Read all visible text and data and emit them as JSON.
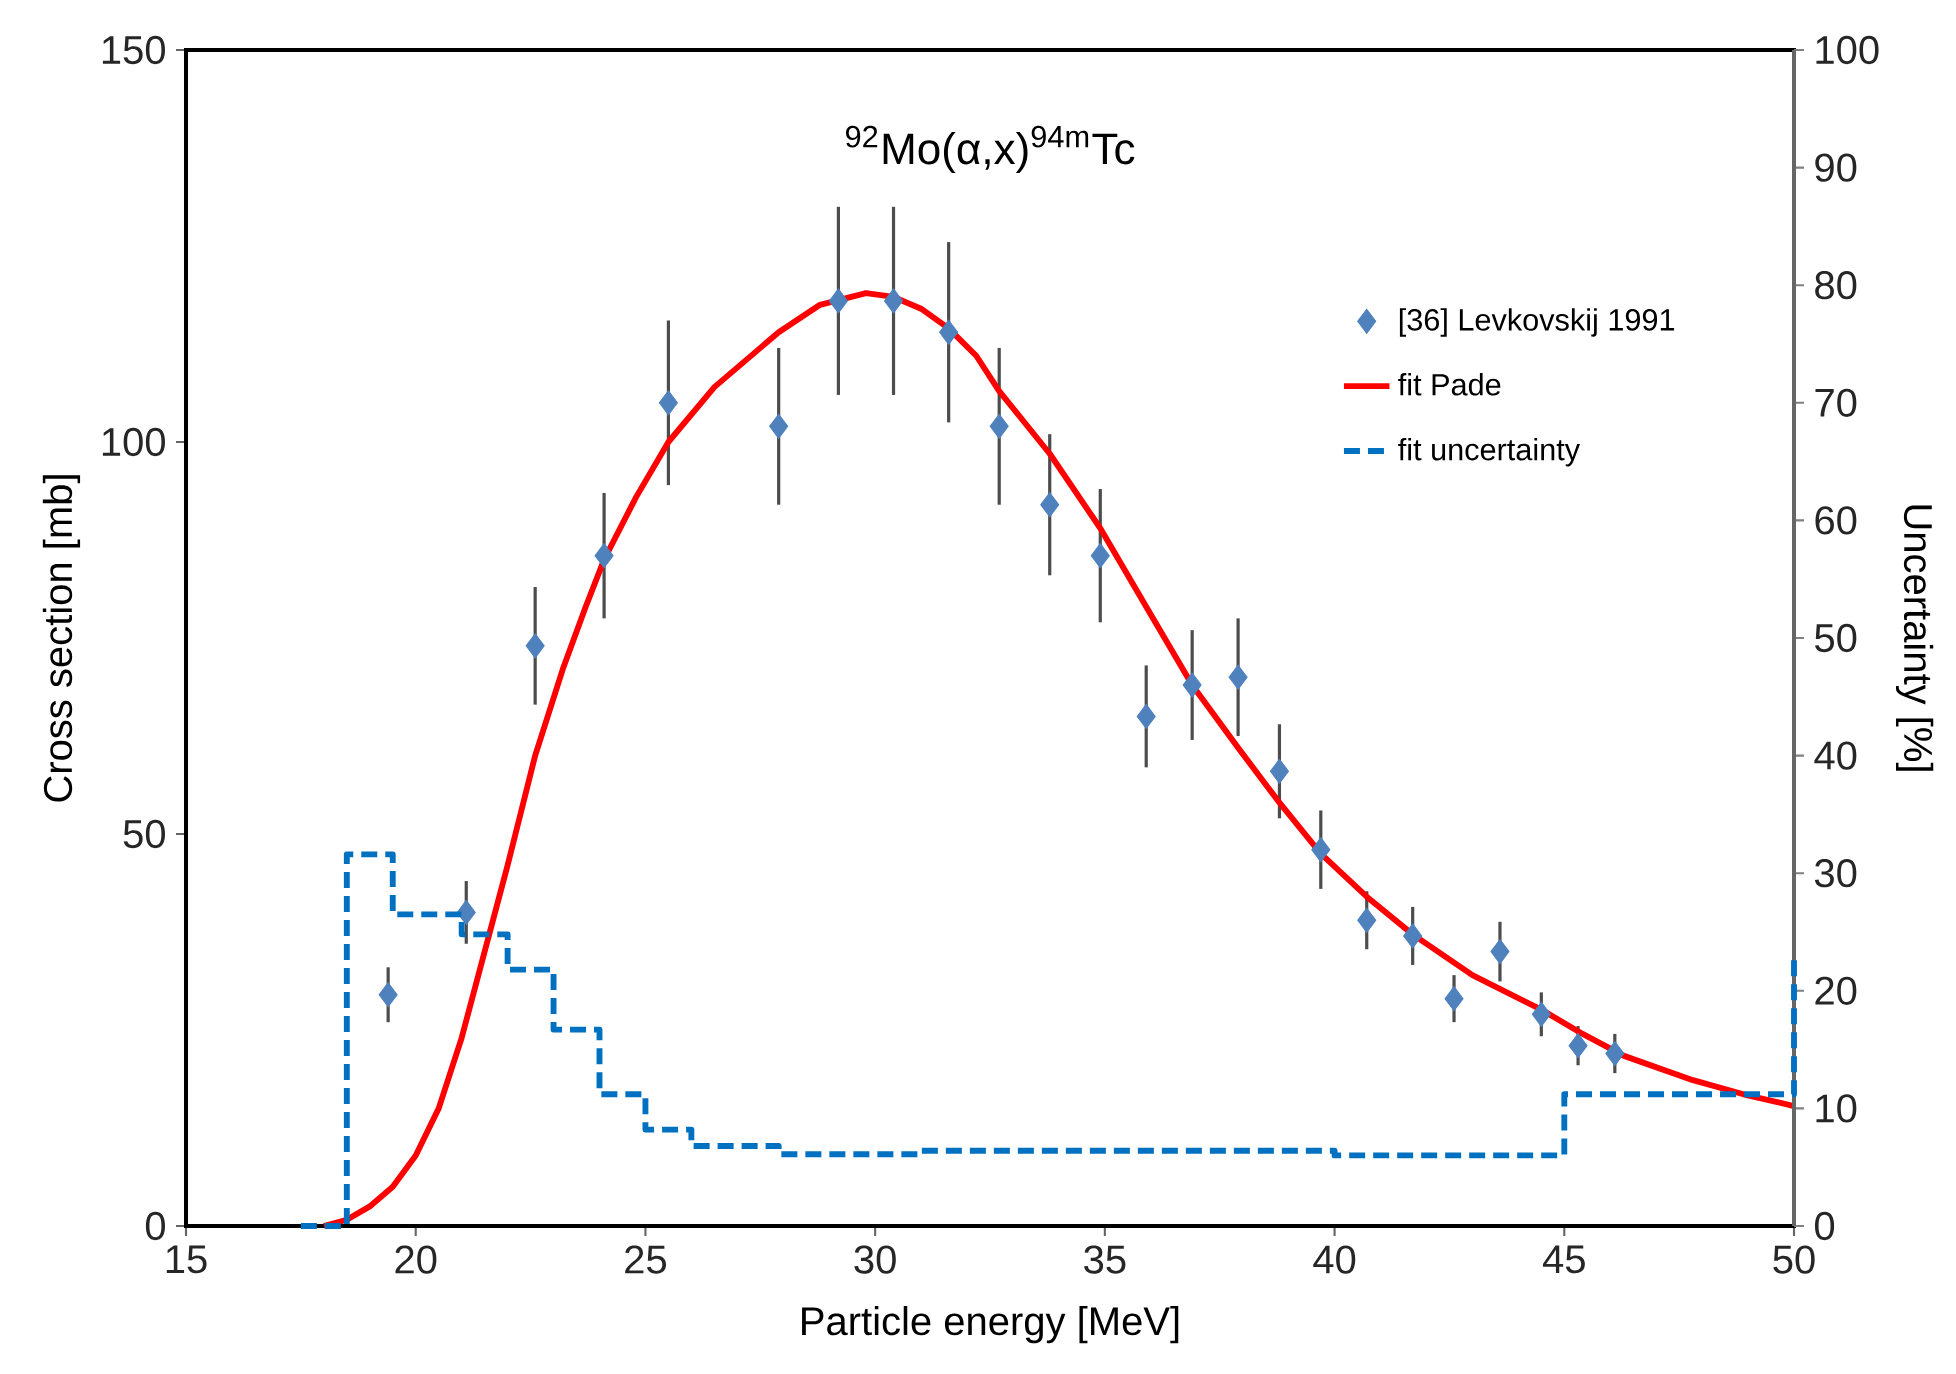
{
  "chart_data": {
    "type": "scatter",
    "title": "$^{92}$Mo(α,x)$^{94m}$Tc",
    "xlabel": "Particle energy [MeV]",
    "ylabel": "Cross section [mb]",
    "y2label": "Uncertainty [%]",
    "xlim": [
      15,
      50
    ],
    "xticks": [
      15,
      20,
      25,
      30,
      35,
      40,
      45,
      50
    ],
    "ylim": [
      0,
      150
    ],
    "yticks": [
      0,
      50,
      100,
      150
    ],
    "y2lim": [
      0,
      100
    ],
    "y2ticks": [
      0,
      10,
      20,
      30,
      40,
      50,
      60,
      70,
      80,
      90,
      100
    ],
    "legend": "top right",
    "series": [
      {
        "name": "[36] Levkovskij 1991",
        "marker": "diamond",
        "color": "#4f81bd",
        "x": [
          19.4,
          21.1,
          22.6,
          24.1,
          25.5,
          27.9,
          29.2,
          30.4,
          31.6,
          32.7,
          33.8,
          34.9,
          35.9,
          36.9,
          37.9,
          38.8,
          39.7,
          40.7,
          41.7,
          42.6,
          43.6,
          44.5,
          45.3,
          46.1
        ],
        "values": [
          29.5,
          40,
          74,
          85.5,
          105,
          102,
          118,
          118,
          114,
          102,
          92,
          85.5,
          65,
          69,
          70,
          58,
          48,
          39,
          37,
          29,
          35,
          27,
          23,
          22
        ],
        "errors": [
          3.5,
          4,
          7.5,
          8,
          10.5,
          10,
          12,
          12,
          11.5,
          10,
          9,
          8.5,
          6.5,
          7,
          7.5,
          6,
          5,
          3.7,
          3.7,
          3,
          3.8,
          2.8,
          2.5,
          2.5
        ]
      },
      {
        "name": "fit Pade",
        "type": "line",
        "marker": "none",
        "line_style": "solid",
        "color": "#ff0000",
        "x": [
          18.0,
          18.5,
          19.0,
          19.5,
          20.0,
          20.5,
          21.0,
          21.5,
          22.0,
          22.6,
          23.2,
          23.7,
          24.1,
          24.8,
          25.5,
          26.5,
          27.9,
          28.8,
          29.8,
          30.4,
          31.0,
          31.6,
          32.2,
          32.7,
          33.8,
          34.9,
          35.9,
          36.9,
          37.9,
          38.8,
          39.7,
          40.7,
          41.7,
          43.0,
          44.5,
          45.4,
          46.3,
          47.8,
          48.9,
          50.0
        ],
        "values": [
          0,
          0.8,
          2.5,
          5,
          9,
          15,
          24,
          35,
          46,
          60,
          71,
          79,
          85,
          93,
          100,
          107,
          114,
          117.5,
          119,
          118.5,
          117,
          114.5,
          111,
          106.5,
          98.5,
          89,
          79,
          69,
          61,
          54,
          47.5,
          42,
          37.2,
          32,
          27.6,
          24.5,
          21.7,
          18.6,
          16.8,
          15.3
        ]
      },
      {
        "name": "fit uncertainty",
        "type": "step",
        "axis": "y2",
        "marker": "none",
        "line_style": "dashed",
        "color": "#0070c0",
        "x": [
          17.5,
          18.5,
          19.5,
          21.0,
          22.0,
          23.0,
          24.0,
          25.0,
          26.0,
          27.9,
          31.0,
          40.0,
          45.0,
          50.0
        ],
        "values": [
          0,
          31.6,
          26.5,
          24.8,
          21.8,
          16.7,
          11.2,
          8.2,
          6.8,
          6.1,
          6.4,
          6.0,
          11.2,
          23.1
        ]
      }
    ]
  }
}
